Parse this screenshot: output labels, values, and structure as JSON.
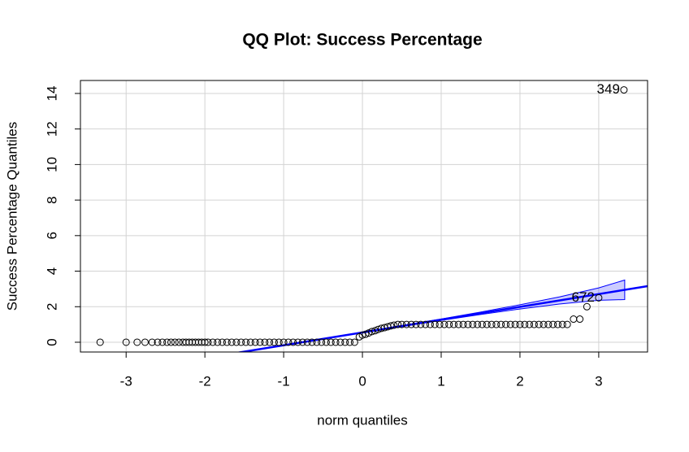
{
  "chart_data": {
    "type": "qqplot",
    "title": "QQ Plot: Success Percentage",
    "x_label": "norm quantiles",
    "y_label": "Success Percentage Quantiles",
    "xlim": [
      -3.58,
      3.62
    ],
    "ylim": [
      -0.55,
      14.73
    ],
    "xticks": [
      -3,
      -2,
      -1,
      0,
      1,
      2,
      3
    ],
    "yticks": [
      0,
      2,
      4,
      6,
      8,
      10,
      12,
      14
    ],
    "grid": true,
    "series": [
      {
        "color": "#000000",
        "x": [
          -3.33,
          -3.0,
          -2.86,
          -2.76,
          -2.67,
          -2.6,
          -2.54,
          -2.48,
          -2.43,
          -2.38,
          -2.33,
          -2.28,
          -2.24,
          -2.2,
          -2.16,
          -2.12,
          -2.08,
          -2.04,
          -2.0,
          -1.96,
          -1.9,
          -1.84,
          -1.78,
          -1.72,
          -1.66,
          -1.6,
          -1.54,
          -1.48,
          -1.42,
          -1.36,
          -1.3,
          -1.24,
          -1.18,
          -1.12,
          -1.06,
          -1.0,
          -0.94,
          -0.88,
          -0.82,
          -0.76,
          -0.7,
          -0.64,
          -0.58,
          -0.52,
          -0.46,
          -0.4,
          -0.34,
          -0.28,
          -0.22,
          -0.16,
          -0.1,
          -0.04,
          0.0,
          0.04,
          0.08,
          0.12,
          0.16,
          0.2,
          0.24,
          0.28,
          0.32,
          0.36,
          0.4,
          0.45,
          0.5,
          0.56,
          0.62,
          0.68,
          0.74,
          0.8,
          0.86,
          0.92,
          0.98,
          1.04,
          1.1,
          1.16,
          1.22,
          1.28,
          1.34,
          1.4,
          1.46,
          1.52,
          1.58,
          1.64,
          1.7,
          1.76,
          1.82,
          1.88,
          1.94,
          2.0,
          2.06,
          2.12,
          2.18,
          2.24,
          2.3,
          2.36,
          2.42,
          2.48,
          2.54,
          2.6,
          2.68,
          2.76,
          2.85,
          3.0,
          3.32
        ],
        "y": [
          0,
          0,
          0,
          0,
          0,
          0,
          0,
          0,
          0,
          0,
          0,
          0,
          0,
          0,
          0,
          0,
          0,
          0,
          0,
          0,
          0,
          0,
          0,
          0,
          0,
          0,
          0,
          0,
          0,
          0,
          0,
          0,
          0,
          0,
          0,
          0,
          0,
          0,
          0,
          0,
          0,
          0,
          0,
          0,
          0,
          0,
          0,
          0,
          0,
          0,
          0,
          0.3,
          0.4,
          0.45,
          0.52,
          0.6,
          0.65,
          0.72,
          0.78,
          0.82,
          0.87,
          0.92,
          0.96,
          1.0,
          1,
          1,
          1,
          1,
          1,
          1,
          1,
          1,
          1,
          1,
          1,
          1,
          1,
          1,
          1,
          1,
          1,
          1,
          1,
          1,
          1,
          1,
          1,
          1,
          1,
          1,
          1,
          1,
          1,
          1,
          1,
          1,
          1,
          1,
          1,
          1,
          1.3,
          1.3,
          2.0,
          2.5,
          14.2
        ]
      }
    ],
    "reference_line": {
      "intercept": 0.55,
      "slope": 0.72,
      "color": "#0000ff"
    },
    "band": {
      "color": "#0000ff",
      "x": [
        0,
        0.5,
        1,
        1.5,
        2,
        2.5,
        3,
        3.33
      ],
      "lower": [
        0.52,
        0.88,
        1.23,
        1.56,
        1.87,
        2.15,
        2.36,
        2.4
      ],
      "upper": [
        0.58,
        0.94,
        1.31,
        1.7,
        2.11,
        2.55,
        3.06,
        3.5
      ]
    },
    "annotations": [
      {
        "text": "349",
        "x": 3.32,
        "y": 14.2
      },
      {
        "text": "672",
        "x": 3.0,
        "y": 2.5
      }
    ]
  }
}
